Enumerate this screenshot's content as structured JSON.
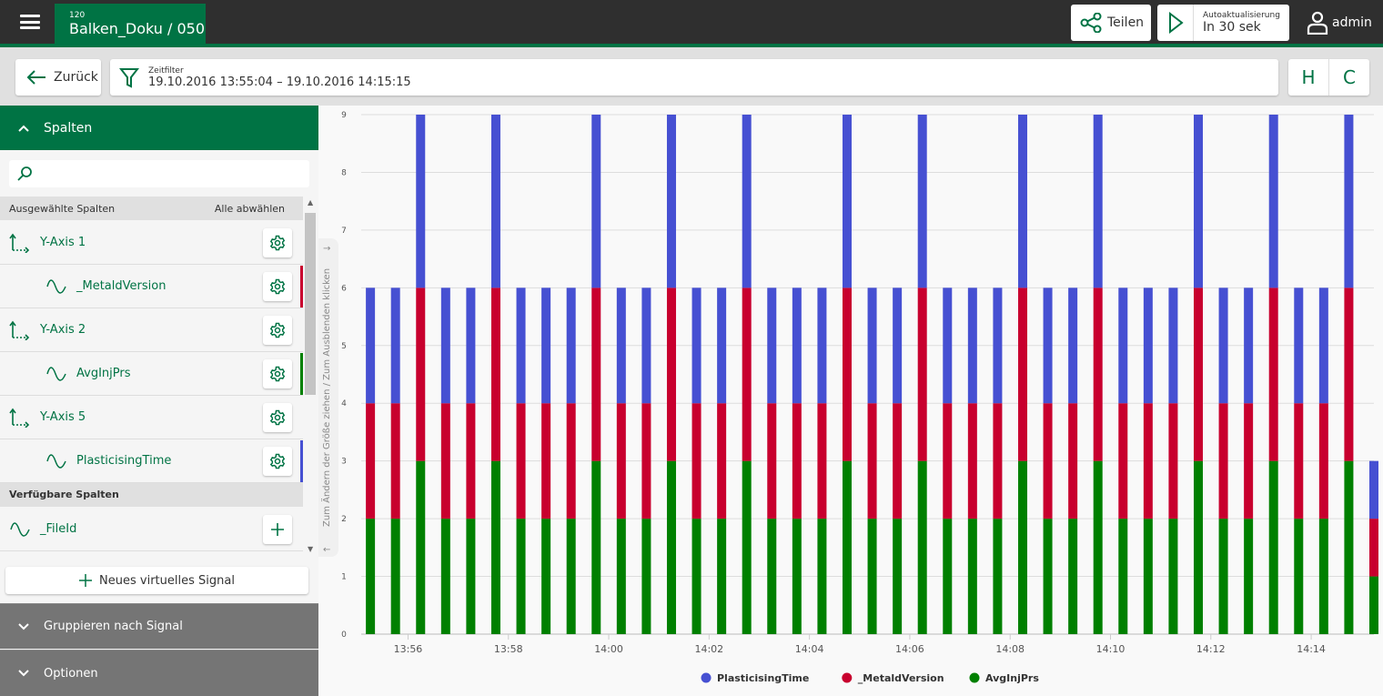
{
  "header": {
    "tab_number": "120",
    "tab_title": "Balken_Doku / 050",
    "share_label": "Teilen",
    "auto_refresh_label": "Autoaktualisierung",
    "auto_refresh_value": "In 30 sek",
    "user": "admin",
    "accent": "#007344"
  },
  "toolbar": {
    "back_label": "Zurück",
    "filter_label": "Zeitfilter",
    "filter_value": "19.10.2016 13:55:04 – 19.10.2016 14:15:15",
    "h_label": "H",
    "c_label": "C"
  },
  "sidebar": {
    "columns_title": "Spalten",
    "search_placeholder": "",
    "selected_header": "Ausgewählte Spalten",
    "deselect_all": "Alle abwählen",
    "selected": [
      {
        "type": "axis",
        "label": "Y-Axis 1"
      },
      {
        "type": "signal",
        "label": "_MetaldVersion",
        "color": "#c8002e"
      },
      {
        "type": "axis",
        "label": "Y-Axis 2"
      },
      {
        "type": "signal",
        "label": "AvgInjPrs",
        "color": "#008000"
      },
      {
        "type": "axis",
        "label": "Y-Axis 5"
      },
      {
        "type": "signal",
        "label": "PlasticisingTime",
        "color": "#4650d2"
      }
    ],
    "available_header": "Verfügbare Spalten",
    "available": [
      {
        "label": "_FileId"
      }
    ],
    "new_signal": "Neues virtuelles Signal",
    "group_by": "Gruppieren nach Signal",
    "options": "Optionen",
    "resize_hint": "Zum Ändern der Größe ziehen / Zum Ausblenden klicken"
  },
  "chart_data": {
    "type": "bar",
    "stacked": true,
    "grid": true,
    "legend_position": "bottom",
    "ylim": [
      0,
      9
    ],
    "yticks": [
      "0",
      "1",
      "2",
      "3",
      "4",
      "5",
      "6",
      "7",
      "8",
      "9"
    ],
    "xlim": [
      "13:55:04",
      "14:15:15"
    ],
    "xticks": [
      "13:56",
      "13:58",
      "14:00",
      "14:02",
      "14:04",
      "14:06",
      "14:08",
      "14:10",
      "14:12",
      "14:14"
    ],
    "x_start": "13:55:15",
    "x_step_seconds": 30,
    "series": [
      {
        "name": "AvgInjPrs",
        "color": "#008000",
        "values": [
          2,
          2,
          3,
          2,
          2,
          3,
          2,
          2,
          2,
          3,
          2,
          2,
          3,
          2,
          2,
          3,
          2,
          2,
          2,
          3,
          2,
          2,
          3,
          2,
          2,
          2,
          3,
          2,
          2,
          3,
          2,
          2,
          2,
          3,
          2,
          2,
          3,
          2,
          2,
          3,
          1
        ]
      },
      {
        "name": "_MetaldVersion",
        "color": "#c8002e",
        "values": [
          2,
          2,
          3,
          2,
          2,
          3,
          2,
          2,
          2,
          3,
          2,
          2,
          3,
          2,
          2,
          3,
          2,
          2,
          2,
          3,
          2,
          2,
          3,
          2,
          2,
          2,
          3,
          2,
          2,
          3,
          2,
          2,
          2,
          3,
          2,
          2,
          3,
          2,
          2,
          3,
          1
        ]
      },
      {
        "name": "PlasticisingTime",
        "color": "#4650d2",
        "values": [
          2,
          2,
          3,
          2,
          2,
          3,
          2,
          2,
          2,
          3,
          2,
          2,
          3,
          2,
          2,
          3,
          2,
          2,
          2,
          3,
          2,
          2,
          3,
          2,
          2,
          2,
          3,
          2,
          2,
          3,
          2,
          2,
          2,
          3,
          2,
          2,
          3,
          2,
          2,
          3,
          1
        ]
      }
    ],
    "legend_order": [
      "PlasticisingTime",
      "_MetaldVersion",
      "AvgInjPrs"
    ]
  }
}
